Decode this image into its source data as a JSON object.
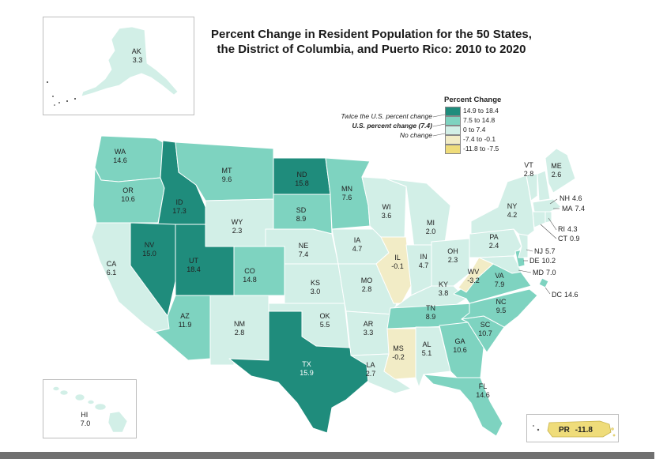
{
  "title_line1": "Percent Change in Resident Population for the 50 States,",
  "title_line2": "the District of Columbia, and Puerto Rico: 2010 to 2020",
  "legend": {
    "title": "Percent Change",
    "classes": [
      {
        "label": "14.9 to 18.4",
        "color": "#1f8c7c"
      },
      {
        "label": "7.5 to 14.8",
        "color": "#7ed3c0"
      },
      {
        "label": "0 to 7.4",
        "color": "#d2efe7"
      },
      {
        "label": "-7.4 to -0.1",
        "color": "#f2ecc6"
      },
      {
        "label": "-11.8 to -7.5",
        "color": "#efdc7a"
      }
    ],
    "notes": {
      "twice": "Twice the U.S. percent change",
      "us": "U.S. percent change (7.4)",
      "none": "No change"
    }
  },
  "states": [
    {
      "abbr": "WA",
      "value": "14.6",
      "cls": 1
    },
    {
      "abbr": "OR",
      "value": "10.6",
      "cls": 1
    },
    {
      "abbr": "CA",
      "value": "6.1",
      "cls": 2
    },
    {
      "abbr": "ID",
      "value": "17.3",
      "cls": 0
    },
    {
      "abbr": "NV",
      "value": "15.0",
      "cls": 0
    },
    {
      "abbr": "UT",
      "value": "18.4",
      "cls": 0
    },
    {
      "abbr": "AZ",
      "value": "11.9",
      "cls": 1
    },
    {
      "abbr": "MT",
      "value": "9.6",
      "cls": 1
    },
    {
      "abbr": "WY",
      "value": "2.3",
      "cls": 2
    },
    {
      "abbr": "CO",
      "value": "14.8",
      "cls": 1
    },
    {
      "abbr": "NM",
      "value": "2.8",
      "cls": 2
    },
    {
      "abbr": "ND",
      "value": "15.8",
      "cls": 0
    },
    {
      "abbr": "SD",
      "value": "8.9",
      "cls": 1
    },
    {
      "abbr": "NE",
      "value": "7.4",
      "cls": 2
    },
    {
      "abbr": "KS",
      "value": "3.0",
      "cls": 2
    },
    {
      "abbr": "OK",
      "value": "5.5",
      "cls": 2
    },
    {
      "abbr": "TX",
      "value": "15.9",
      "cls": 0
    },
    {
      "abbr": "MN",
      "value": "7.6",
      "cls": 1
    },
    {
      "abbr": "IA",
      "value": "4.7",
      "cls": 2
    },
    {
      "abbr": "MO",
      "value": "2.8",
      "cls": 2
    },
    {
      "abbr": "AR",
      "value": "3.3",
      "cls": 2
    },
    {
      "abbr": "LA",
      "value": "2.7",
      "cls": 2
    },
    {
      "abbr": "WI",
      "value": "3.6",
      "cls": 2
    },
    {
      "abbr": "IL",
      "value": "-0.1",
      "cls": 3
    },
    {
      "abbr": "MI",
      "value": "2.0",
      "cls": 2
    },
    {
      "abbr": "IN",
      "value": "4.7",
      "cls": 2
    },
    {
      "abbr": "OH",
      "value": "2.3",
      "cls": 2
    },
    {
      "abbr": "KY",
      "value": "3.8",
      "cls": 2
    },
    {
      "abbr": "TN",
      "value": "8.9",
      "cls": 1
    },
    {
      "abbr": "MS",
      "value": "-0.2",
      "cls": 3
    },
    {
      "abbr": "AL",
      "value": "5.1",
      "cls": 2
    },
    {
      "abbr": "GA",
      "value": "10.6",
      "cls": 1
    },
    {
      "abbr": "FL",
      "value": "14.6",
      "cls": 1
    },
    {
      "abbr": "SC",
      "value": "10.7",
      "cls": 1
    },
    {
      "abbr": "NC",
      "value": "9.5",
      "cls": 1
    },
    {
      "abbr": "VA",
      "value": "7.9",
      "cls": 1
    },
    {
      "abbr": "WV",
      "value": "-3.2",
      "cls": 3
    },
    {
      "abbr": "PA",
      "value": "2.4",
      "cls": 2
    },
    {
      "abbr": "NY",
      "value": "4.2",
      "cls": 2
    },
    {
      "abbr": "VT",
      "value": "2.8",
      "cls": 2
    },
    {
      "abbr": "ME",
      "value": "2.6",
      "cls": 2
    },
    {
      "abbr": "NH",
      "value": "4.6",
      "cls": 2
    },
    {
      "abbr": "MA",
      "value": "7.4",
      "cls": 2
    },
    {
      "abbr": "RI",
      "value": "4.3",
      "cls": 2
    },
    {
      "abbr": "CT",
      "value": "0.9",
      "cls": 2
    },
    {
      "abbr": "NJ",
      "value": "5.7",
      "cls": 2
    },
    {
      "abbr": "DE",
      "value": "10.2",
      "cls": 1
    },
    {
      "abbr": "MD",
      "value": "7.0",
      "cls": 2
    },
    {
      "abbr": "DC",
      "value": "14.6",
      "cls": 1
    },
    {
      "abbr": "AK",
      "value": "3.3",
      "cls": 2
    },
    {
      "abbr": "HI",
      "value": "7.0",
      "cls": 2
    },
    {
      "abbr": "PR",
      "value": "-11.8",
      "cls": 4
    }
  ]
}
